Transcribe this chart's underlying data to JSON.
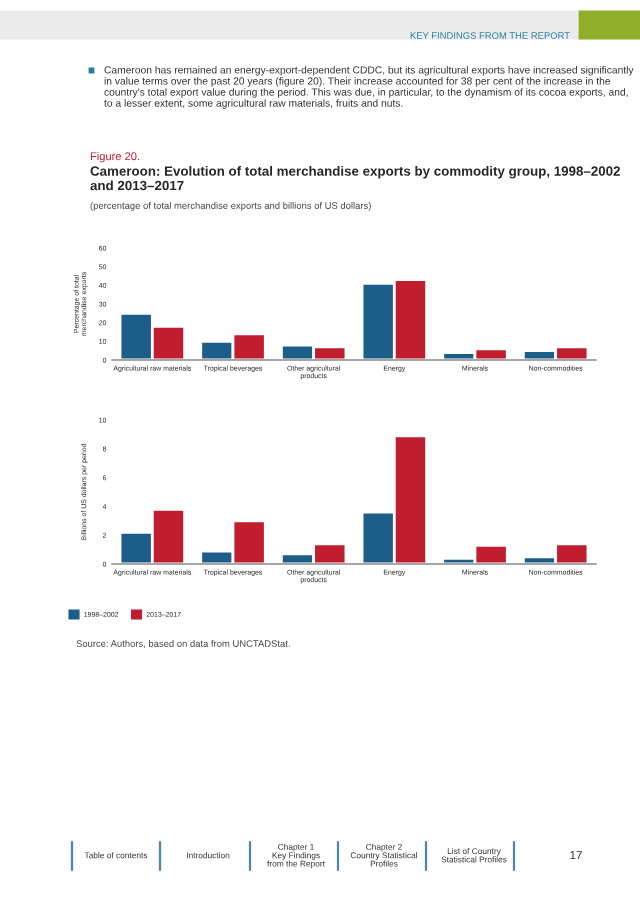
{
  "chart_data": [
    {
      "type": "bar",
      "title": "Cameroon: Evolution of total merchandise exports by commodity group, 1998–2002 and 2013–2017",
      "subtitle": "(percentage of total merchandise exports and billions of US dollars)",
      "ylabel": "Percentage of total\nmerchandise exports",
      "annotations": [
        "KEY FINDINGS FROM THE REPORT",
        "Cameroon has remained an energy-export-dependent CDDC, but its agricultural exports have increased significantly in value terms over the past 20 years (figure 20). Their increase accounted for 38 per cent of the increase in the country's total export value during the period. This was due, in particular, to the dynamism of its cocoa exports, and, to a lesser extent, some agricultural raw materials, fruits and nuts.",
        "Figure 20."
      ],
      "categories": [
        "Agricultural raw materials",
        "Tropical beverages",
        "Other agricultural\nproducts",
        "Energy",
        "Minerals",
        "Non-commodities"
      ],
      "series": [
        {
          "color": "#1d5d8a",
          "values": [
            25,
            10,
            8,
            41,
            4,
            5
          ]
        },
        {
          "color": "#c01d2e",
          "values": [
            18,
            14,
            7,
            43,
            6,
            7
          ]
        }
      ],
      "ylim": [
        0,
        60
      ],
      "yticks": [
        0,
        10,
        20,
        30,
        40,
        50,
        60
      ],
      "grid": false,
      "legend": false
    },
    {
      "type": "bar",
      "ylabel": "Billions of US dollars per period",
      "annotations": [
        "Source: Authors, based on data from UNCTADStat.",
        "Table of contents",
        "Introduction",
        "Chapter 1\nKey Findings\nfrom the Report",
        "Chapter 2\nCountry Statistical\nProfiles",
        "List of Country\nStatistical Profiles",
        "17"
      ],
      "categories": [
        "Agricultural raw materials",
        "Tropical beverages",
        "Other agricultural\nproducts",
        "Energy",
        "Minerals",
        "Non-commodities"
      ],
      "series": [
        {
          "name": "1998–2002",
          "color": "#1d5d8a",
          "values": [
            2.2,
            0.9,
            0.7,
            3.6,
            0.4,
            0.5
          ]
        },
        {
          "name": "2013–2017",
          "color": "#c01d2e",
          "values": [
            3.8,
            3.0,
            1.4,
            8.9,
            1.3,
            1.4
          ]
        }
      ],
      "ylim": [
        0,
        10
      ],
      "yticks": [
        0,
        2,
        4,
        6,
        8,
        10
      ],
      "grid": false,
      "legend": "bottom left"
    }
  ]
}
